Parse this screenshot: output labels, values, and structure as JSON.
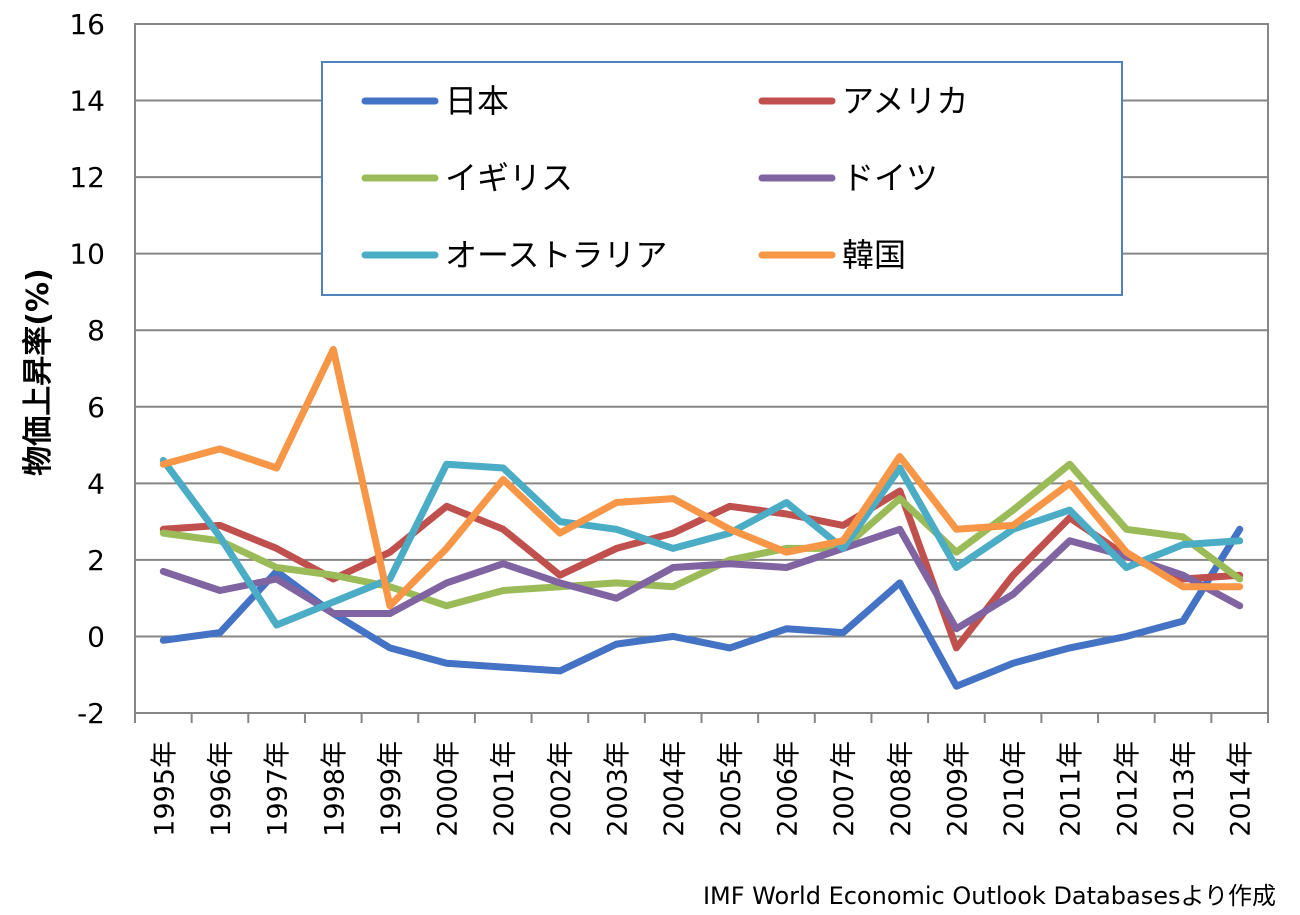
{
  "chart_data": {
    "type": "line",
    "title": "",
    "xlabel": "",
    "ylabel": "物価上昇率(%)",
    "ylim": [
      -2,
      16
    ],
    "yticks": [
      "16",
      "14",
      "12",
      "10",
      "8",
      "6",
      "4",
      "2",
      "0",
      "-2"
    ],
    "grid": "horizontal",
    "legend_position": "top-center",
    "categories": [
      "1995年",
      "1996年",
      "1997年",
      "1998年",
      "1999年",
      "2000年",
      "2001年",
      "2002年",
      "2003年",
      "2004年",
      "2005年",
      "2006年",
      "2007年",
      "2008年",
      "2009年",
      "2010年",
      "2011年",
      "2012年",
      "2013年",
      "2014年"
    ],
    "series": [
      {
        "name": "日本",
        "color": "#4472c4",
        "values": [
          -0.1,
          0.1,
          1.7,
          0.6,
          -0.3,
          -0.7,
          -0.8,
          -0.9,
          -0.2,
          0.0,
          -0.3,
          0.2,
          0.1,
          1.4,
          -1.3,
          -0.7,
          -0.3,
          0.0,
          0.4,
          2.8
        ]
      },
      {
        "name": "アメリカ",
        "color": "#c0504d",
        "values": [
          2.8,
          2.9,
          2.3,
          1.5,
          2.2,
          3.4,
          2.8,
          1.6,
          2.3,
          2.7,
          3.4,
          3.2,
          2.9,
          3.8,
          -0.3,
          1.6,
          3.1,
          2.1,
          1.5,
          1.6
        ]
      },
      {
        "name": "イギリス",
        "color": "#9bbb59",
        "values": [
          2.7,
          2.5,
          1.8,
          1.6,
          1.3,
          0.8,
          1.2,
          1.3,
          1.4,
          1.3,
          2.0,
          2.3,
          2.3,
          3.6,
          2.2,
          3.3,
          4.5,
          2.8,
          2.6,
          1.5
        ]
      },
      {
        "name": "ドイツ",
        "color": "#8064a2",
        "values": [
          1.7,
          1.2,
          1.5,
          0.6,
          0.6,
          1.4,
          1.9,
          1.4,
          1.0,
          1.8,
          1.9,
          1.8,
          2.3,
          2.8,
          0.2,
          1.1,
          2.5,
          2.1,
          1.6,
          0.8
        ]
      },
      {
        "name": "オーストラリア",
        "color": "#4bacc6",
        "values": [
          4.6,
          2.6,
          0.3,
          0.9,
          1.5,
          4.5,
          4.4,
          3.0,
          2.8,
          2.3,
          2.7,
          3.5,
          2.3,
          4.4,
          1.8,
          2.8,
          3.3,
          1.8,
          2.4,
          2.5
        ]
      },
      {
        "name": "韓国",
        "color": "#f79646",
        "values": [
          4.5,
          4.9,
          4.4,
          7.5,
          0.8,
          2.3,
          4.1,
          2.7,
          3.5,
          3.6,
          2.8,
          2.2,
          2.5,
          4.7,
          2.8,
          2.9,
          4.0,
          2.2,
          1.3,
          1.3
        ]
      }
    ],
    "source": "IMF World Economic Outlook Databasesより作成"
  }
}
